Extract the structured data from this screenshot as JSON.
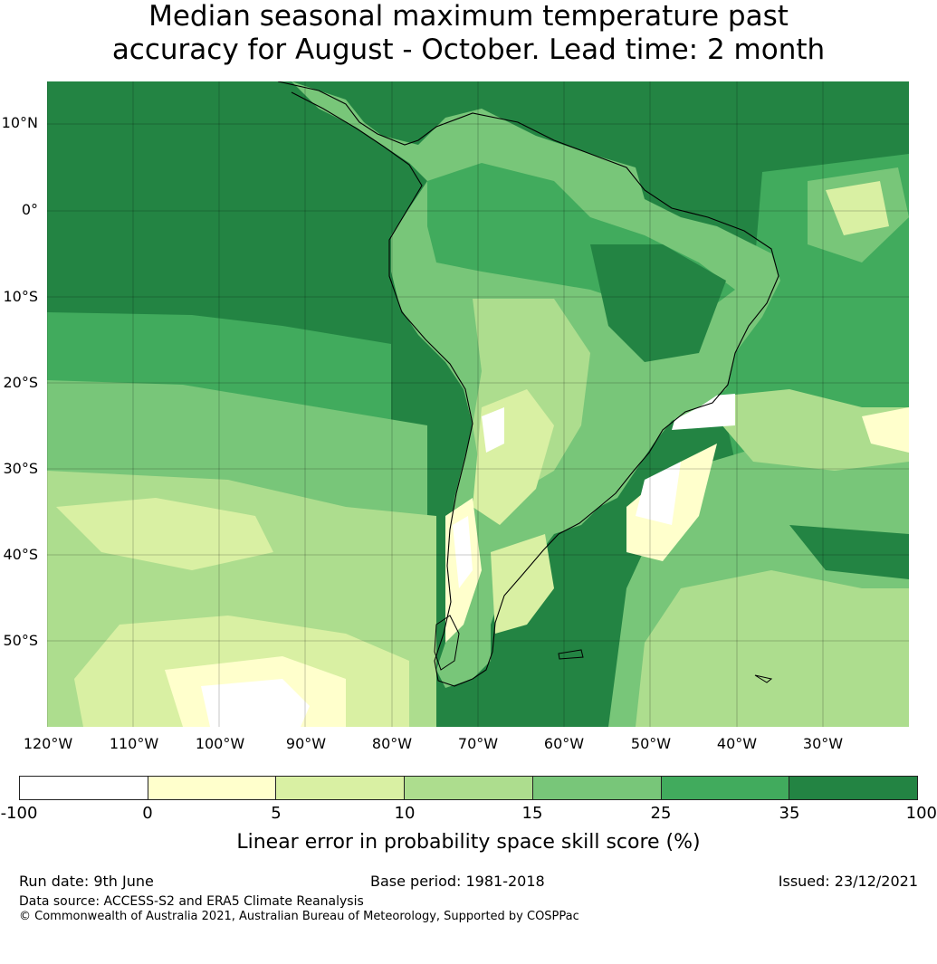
{
  "title": {
    "line1": "Median seasonal maximum temperature past",
    "line2": "accuracy for August - October. Lead time: 2 month"
  },
  "map": {
    "lat_labels": [
      "10°N",
      "0°",
      "10°S",
      "20°S",
      "30°S",
      "40°S",
      "50°S"
    ],
    "lon_labels": [
      "120°W",
      "110°W",
      "100°W",
      "90°W",
      "80°W",
      "70°W",
      "60°W",
      "50°W",
      "40°W",
      "30°W"
    ]
  },
  "colorbar": {
    "ticks": [
      "-100",
      "0",
      "5",
      "10",
      "15",
      "25",
      "35",
      "100"
    ],
    "colors": [
      "#ffffff",
      "#ffffcc",
      "#d9f0a3",
      "#addd8e",
      "#78c679",
      "#41ab5d",
      "#238443"
    ],
    "label": "Linear error in probability space skill score (%)"
  },
  "footer": {
    "run_date": "Run date: 9th June",
    "base_period": "Base period: 1981-2018",
    "issued": "Issued: 23/12/2021",
    "data_source": "Data source: ACCESS-S2 and ERA5 Climate Reanalysis",
    "copyright": "© Commonwealth of Australia 2021, Australian Bureau of Meteorology, Supported by COSPPac"
  }
}
